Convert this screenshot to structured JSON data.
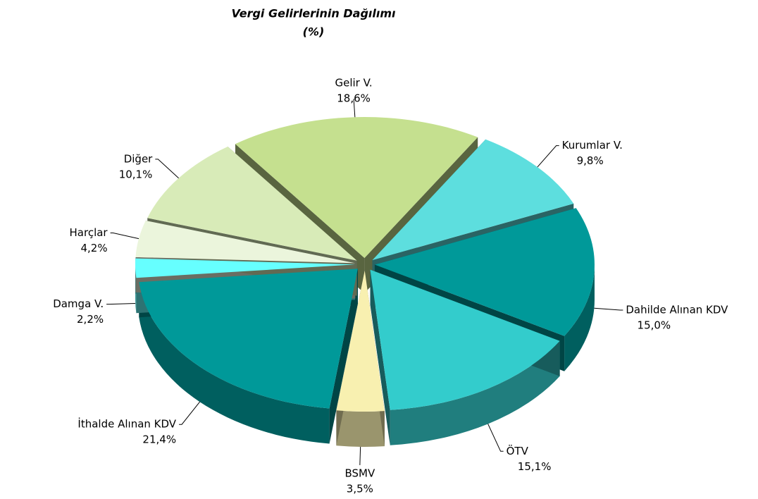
{
  "chart_data": {
    "type": "pie3d",
    "title": "Vergi Gelirlerinin Dağılımı",
    "subtitle": "(%)",
    "categories": [
      "Gelir V.",
      "Kurumlar V.",
      "Dahilde Alınan KDV",
      "ÖTV",
      "BSMV",
      "İthalde Alınan KDV",
      "Damga V.",
      "Harçlar",
      "Diğer"
    ],
    "values": [
      18.6,
      9.8,
      15.0,
      15.1,
      3.5,
      21.4,
      2.2,
      4.2,
      10.1
    ],
    "value_labels": [
      "18,6%",
      "9,8%",
      "15,0%",
      "15,1%",
      "3,5%",
      "21,4%",
      "2,2%",
      "4,2%",
      "10,1%"
    ],
    "colors": [
      "#c5e08f",
      "#5ddede",
      "#009999",
      "#33cccc",
      "#f8f0b0",
      "#009999",
      "#66ffff",
      "#ebf5dc",
      "#d8ebb8"
    ],
    "exploded": true
  }
}
